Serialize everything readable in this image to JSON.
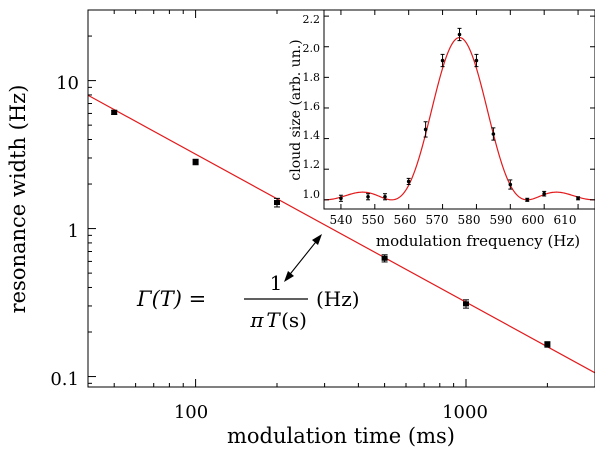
{
  "chart_data": [
    {
      "type": "scatter",
      "panel": "main",
      "xlabel": "modulation time (ms)",
      "ylabel": "resonance width (Hz)",
      "xscale": "log",
      "yscale": "log",
      "xlim": [
        40,
        3000
      ],
      "ylim": [
        0.085,
        30
      ],
      "xticks": [
        100,
        1000
      ],
      "xtick_labels": [
        "100",
        "1000"
      ],
      "yticks": [
        0.1,
        1,
        10
      ],
      "ytick_labels": [
        "0.1",
        "1",
        "10"
      ],
      "series": [
        {
          "type": "scatter",
          "x": [
            50,
            100,
            200,
            500,
            1000,
            2000
          ],
          "y": [
            6.1,
            2.82,
            1.5,
            0.63,
            0.31,
            0.165
          ],
          "yerr": [
            0.2,
            0.12,
            0.1,
            0.035,
            0.02,
            0.007
          ]
        },
        {
          "type": "line",
          "x": [
            40,
            3000
          ],
          "y": [
            7.96,
            0.106
          ]
        }
      ],
      "annotation": {
        "lhs": "Γ(T) =",
        "numerator": "1",
        "denominator_pi": "π",
        "denominator_T": "T",
        "denominator_unit": "(s)",
        "unit": "(Hz)"
      },
      "grid": false,
      "legend": "none"
    },
    {
      "type": "scatter",
      "panel": "inset",
      "xlabel": "modulation frequency (Hz)",
      "ylabel": "cloud size (arb. un.)",
      "xlim": [
        535,
        615
      ],
      "ylim": [
        0.94,
        2.24
      ],
      "xticks": [
        540,
        550,
        560,
        570,
        580,
        590,
        600,
        610
      ],
      "xtick_labels": [
        "540",
        "550",
        "560",
        "570",
        "580",
        "590",
        "600",
        "610"
      ],
      "yticks": [
        1.0,
        1.2,
        1.4,
        1.6,
        1.8,
        2.0,
        2.2
      ],
      "ytick_labels": [
        "1.0",
        "1.2",
        "1.4",
        "1.6",
        "1.8",
        "2.0",
        "2.2"
      ],
      "series": [
        {
          "type": "scatter",
          "x": [
            540,
            548,
            553,
            560,
            565,
            570,
            575,
            580,
            585,
            590,
            595,
            600,
            610
          ],
          "y": [
            1.01,
            1.02,
            1.02,
            1.12,
            1.46,
            1.91,
            2.08,
            1.91,
            1.43,
            1.1,
            1.0,
            1.04,
            1.01
          ],
          "yerr": [
            0.02,
            0.02,
            0.02,
            0.02,
            0.05,
            0.04,
            0.04,
            0.04,
            0.04,
            0.03,
            0.01,
            0.015,
            0.01
          ]
        },
        {
          "type": "line",
          "model": "sinc squared",
          "center": 575,
          "amplitude": 1.06,
          "offset": 1.0,
          "first_zero_spacing": 20
        }
      ],
      "grid": false,
      "legend": "none"
    }
  ]
}
